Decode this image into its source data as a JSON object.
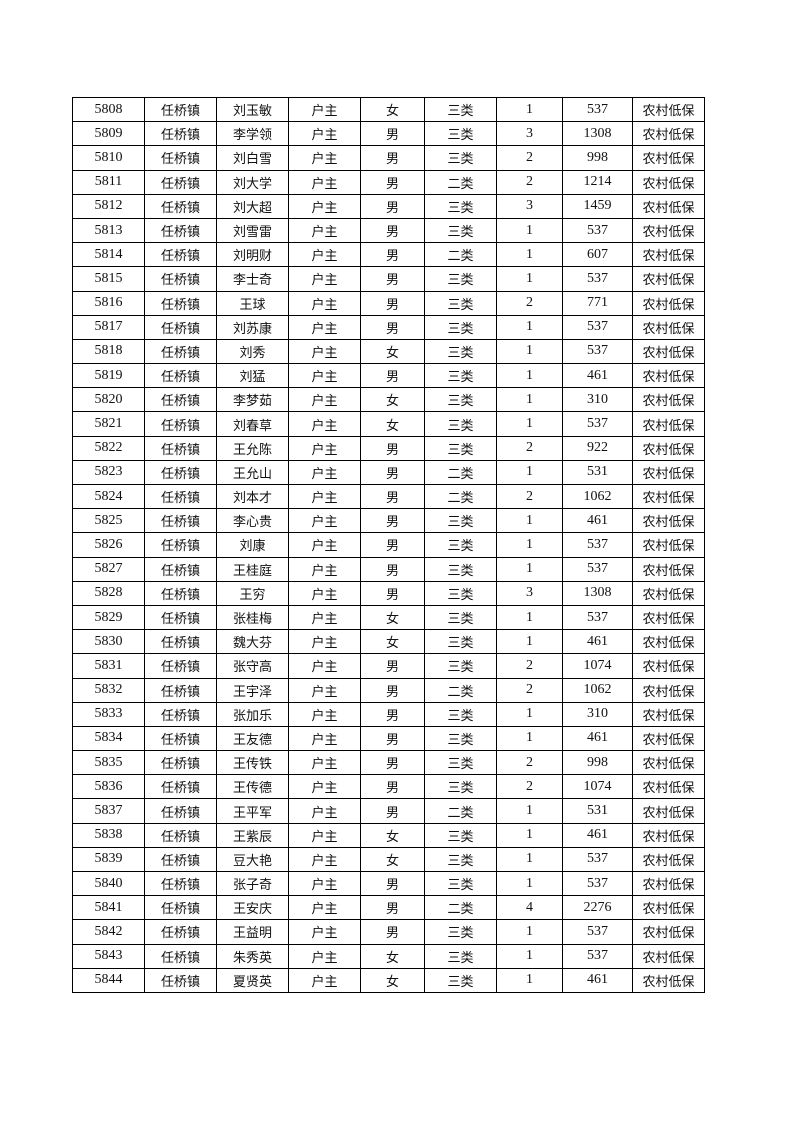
{
  "table": {
    "rows": [
      [
        "5808",
        "任桥镇",
        "刘玉敏",
        "户主",
        "女",
        "三类",
        "1",
        "537",
        "农村低保"
      ],
      [
        "5809",
        "任桥镇",
        "李学领",
        "户主",
        "男",
        "三类",
        "3",
        "1308",
        "农村低保"
      ],
      [
        "5810",
        "任桥镇",
        "刘白雪",
        "户主",
        "男",
        "三类",
        "2",
        "998",
        "农村低保"
      ],
      [
        "5811",
        "任桥镇",
        "刘大学",
        "户主",
        "男",
        "二类",
        "2",
        "1214",
        "农村低保"
      ],
      [
        "5812",
        "任桥镇",
        "刘大超",
        "户主",
        "男",
        "三类",
        "3",
        "1459",
        "农村低保"
      ],
      [
        "5813",
        "任桥镇",
        "刘雪雷",
        "户主",
        "男",
        "三类",
        "1",
        "537",
        "农村低保"
      ],
      [
        "5814",
        "任桥镇",
        "刘明财",
        "户主",
        "男",
        "二类",
        "1",
        "607",
        "农村低保"
      ],
      [
        "5815",
        "任桥镇",
        "李士奇",
        "户主",
        "男",
        "三类",
        "1",
        "537",
        "农村低保"
      ],
      [
        "5816",
        "任桥镇",
        "王球",
        "户主",
        "男",
        "三类",
        "2",
        "771",
        "农村低保"
      ],
      [
        "5817",
        "任桥镇",
        "刘苏康",
        "户主",
        "男",
        "三类",
        "1",
        "537",
        "农村低保"
      ],
      [
        "5818",
        "任桥镇",
        "刘秀",
        "户主",
        "女",
        "三类",
        "1",
        "537",
        "农村低保"
      ],
      [
        "5819",
        "任桥镇",
        "刘猛",
        "户主",
        "男",
        "三类",
        "1",
        "461",
        "农村低保"
      ],
      [
        "5820",
        "任桥镇",
        "李梦茹",
        "户主",
        "女",
        "三类",
        "1",
        "310",
        "农村低保"
      ],
      [
        "5821",
        "任桥镇",
        "刘春草",
        "户主",
        "女",
        "三类",
        "1",
        "537",
        "农村低保"
      ],
      [
        "5822",
        "任桥镇",
        "王允陈",
        "户主",
        "男",
        "三类",
        "2",
        "922",
        "农村低保"
      ],
      [
        "5823",
        "任桥镇",
        "王允山",
        "户主",
        "男",
        "二类",
        "1",
        "531",
        "农村低保"
      ],
      [
        "5824",
        "任桥镇",
        "刘本才",
        "户主",
        "男",
        "二类",
        "2",
        "1062",
        "农村低保"
      ],
      [
        "5825",
        "任桥镇",
        "李心贵",
        "户主",
        "男",
        "三类",
        "1",
        "461",
        "农村低保"
      ],
      [
        "5826",
        "任桥镇",
        "刘康",
        "户主",
        "男",
        "三类",
        "1",
        "537",
        "农村低保"
      ],
      [
        "5827",
        "任桥镇",
        "王桂庭",
        "户主",
        "男",
        "三类",
        "1",
        "537",
        "农村低保"
      ],
      [
        "5828",
        "任桥镇",
        "王穷",
        "户主",
        "男",
        "三类",
        "3",
        "1308",
        "农村低保"
      ],
      [
        "5829",
        "任桥镇",
        "张桂梅",
        "户主",
        "女",
        "三类",
        "1",
        "537",
        "农村低保"
      ],
      [
        "5830",
        "任桥镇",
        "魏大芬",
        "户主",
        "女",
        "三类",
        "1",
        "461",
        "农村低保"
      ],
      [
        "5831",
        "任桥镇",
        "张守高",
        "户主",
        "男",
        "三类",
        "2",
        "1074",
        "农村低保"
      ],
      [
        "5832",
        "任桥镇",
        "王宇泽",
        "户主",
        "男",
        "二类",
        "2",
        "1062",
        "农村低保"
      ],
      [
        "5833",
        "任桥镇",
        "张加乐",
        "户主",
        "男",
        "三类",
        "1",
        "310",
        "农村低保"
      ],
      [
        "5834",
        "任桥镇",
        "王友德",
        "户主",
        "男",
        "三类",
        "1",
        "461",
        "农村低保"
      ],
      [
        "5835",
        "任桥镇",
        "王传铁",
        "户主",
        "男",
        "三类",
        "2",
        "998",
        "农村低保"
      ],
      [
        "5836",
        "任桥镇",
        "王传德",
        "户主",
        "男",
        "三类",
        "2",
        "1074",
        "农村低保"
      ],
      [
        "5837",
        "任桥镇",
        "王平军",
        "户主",
        "男",
        "二类",
        "1",
        "531",
        "农村低保"
      ],
      [
        "5838",
        "任桥镇",
        "王紫辰",
        "户主",
        "女",
        "三类",
        "1",
        "461",
        "农村低保"
      ],
      [
        "5839",
        "任桥镇",
        "豆大艳",
        "户主",
        "女",
        "三类",
        "1",
        "537",
        "农村低保"
      ],
      [
        "5840",
        "任桥镇",
        "张子奇",
        "户主",
        "男",
        "三类",
        "1",
        "537",
        "农村低保"
      ],
      [
        "5841",
        "任桥镇",
        "王安庆",
        "户主",
        "男",
        "二类",
        "4",
        "2276",
        "农村低保"
      ],
      [
        "5842",
        "任桥镇",
        "王益明",
        "户主",
        "男",
        "三类",
        "1",
        "537",
        "农村低保"
      ],
      [
        "5843",
        "任桥镇",
        "朱秀英",
        "户主",
        "女",
        "三类",
        "1",
        "537",
        "农村低保"
      ],
      [
        "5844",
        "任桥镇",
        "夏贤英",
        "户主",
        "女",
        "三类",
        "1",
        "461",
        "农村低保"
      ]
    ]
  }
}
